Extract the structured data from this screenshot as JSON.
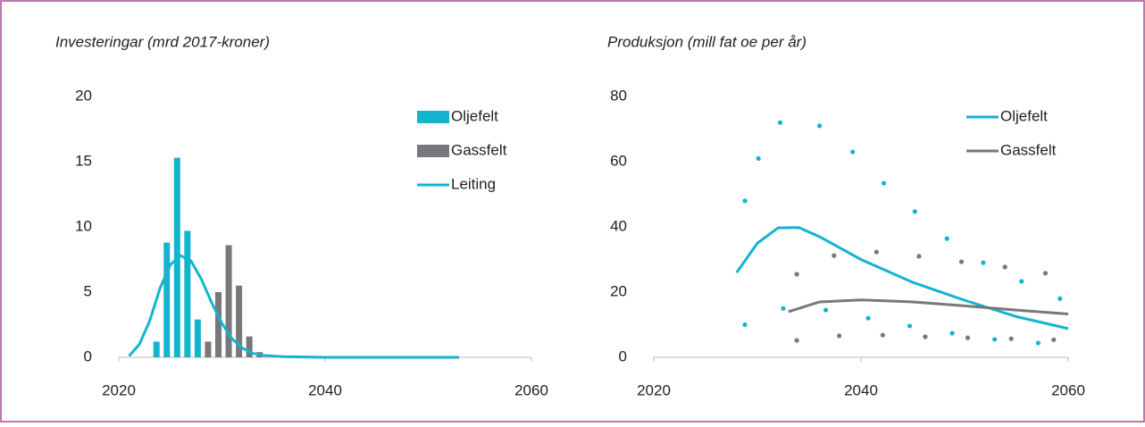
{
  "chart_data": [
    {
      "type": "bar",
      "title": "Investeringar (mrd 2017-kroner)",
      "x": [
        2024,
        2025,
        2026,
        2027,
        2028,
        2029,
        2030,
        2031,
        2032,
        2033,
        2034
      ],
      "series": [
        {
          "name": "Oljefelt",
          "type": "bar",
          "color": "#14b4cf",
          "values": [
            1.2,
            8.8,
            15.3,
            9.7,
            2.9,
            null,
            null,
            null,
            null,
            null,
            null
          ]
        },
        {
          "name": "Gassfelt",
          "type": "bar",
          "color": "#77787b",
          "values": [
            null,
            null,
            null,
            null,
            null,
            1.2,
            5.0,
            8.6,
            5.5,
            1.6,
            0.4
          ]
        },
        {
          "name": "Leiting",
          "type": "line",
          "color": "#14b4cf",
          "x": [
            2021,
            2022,
            2023,
            2024,
            2025,
            2026,
            2027,
            2028,
            2029,
            2030,
            2031,
            2032,
            2033,
            2034,
            2036,
            2040,
            2053
          ],
          "values": [
            0.1,
            1.0,
            2.8,
            5.3,
            7.1,
            7.8,
            7.4,
            6.0,
            4.2,
            2.6,
            1.4,
            0.7,
            0.3,
            0.15,
            0.05,
            0,
            0
          ]
        }
      ],
      "xlim": [
        2020,
        2060
      ],
      "xticks": [
        2020,
        2040,
        2060
      ],
      "ylim": [
        0,
        20
      ],
      "yticks": [
        0,
        5,
        10,
        15,
        20
      ],
      "legend": "upper right"
    },
    {
      "type": "line",
      "title": "Produksjon (mill fat oe per år)",
      "series": [
        {
          "name": "Oljefelt",
          "type": "line",
          "color": "#14b4cf",
          "x": [
            2028,
            2030,
            2032,
            2034,
            2036,
            2040,
            2045,
            2050,
            2055,
            2060
          ],
          "values": [
            26,
            35,
            39.7,
            39.8,
            37,
            30,
            23,
            17.5,
            12.5,
            8.8
          ]
        },
        {
          "name": "Gassfelt",
          "type": "line",
          "color": "#77787b",
          "x": [
            2033,
            2036,
            2040,
            2045,
            2050,
            2055,
            2060
          ],
          "values": [
            14,
            17,
            17.6,
            17,
            15.8,
            14.5,
            13.3
          ]
        },
        {
          "type": "dots",
          "color": "#14b4cf",
          "x": [
            2028.8,
            2030.1,
            2032.2,
            2036.0,
            2039.2,
            2042.2,
            2045.2,
            2048.3,
            2051.8,
            2055.5,
            2059.2
          ],
          "values": [
            48,
            61,
            72,
            71,
            63,
            53.4,
            44.7,
            36.4,
            29,
            23.3,
            18
          ]
        },
        {
          "type": "dots",
          "color": "#14b4cf",
          "x": [
            2028.8,
            2032.5,
            2036.6,
            2040.7,
            2044.7,
            2048.8,
            2052.9,
            2057.1
          ],
          "values": [
            10,
            15,
            14.5,
            12,
            9.6,
            7.4,
            5.5,
            4.4
          ]
        },
        {
          "type": "dots",
          "color": "#77787b",
          "x": [
            2033.8,
            2037.4,
            2041.5,
            2045.6,
            2049.7,
            2053.9,
            2057.8
          ],
          "values": [
            25.5,
            31.2,
            32.3,
            31,
            29.3,
            27.7,
            25.8
          ]
        },
        {
          "type": "dots",
          "color": "#77787b",
          "x": [
            2033.8,
            2037.9,
            2042.1,
            2046.2,
            2050.3,
            2054.5,
            2058.6
          ],
          "values": [
            5.2,
            6.6,
            6.8,
            6.3,
            6,
            5.7,
            5.4
          ]
        }
      ],
      "xlim": [
        2020,
        2060
      ],
      "xticks": [
        2020,
        2040,
        2060
      ],
      "ylim": [
        0,
        80
      ],
      "yticks": [
        0,
        20,
        40,
        60,
        80
      ],
      "legend": "upper right"
    }
  ]
}
